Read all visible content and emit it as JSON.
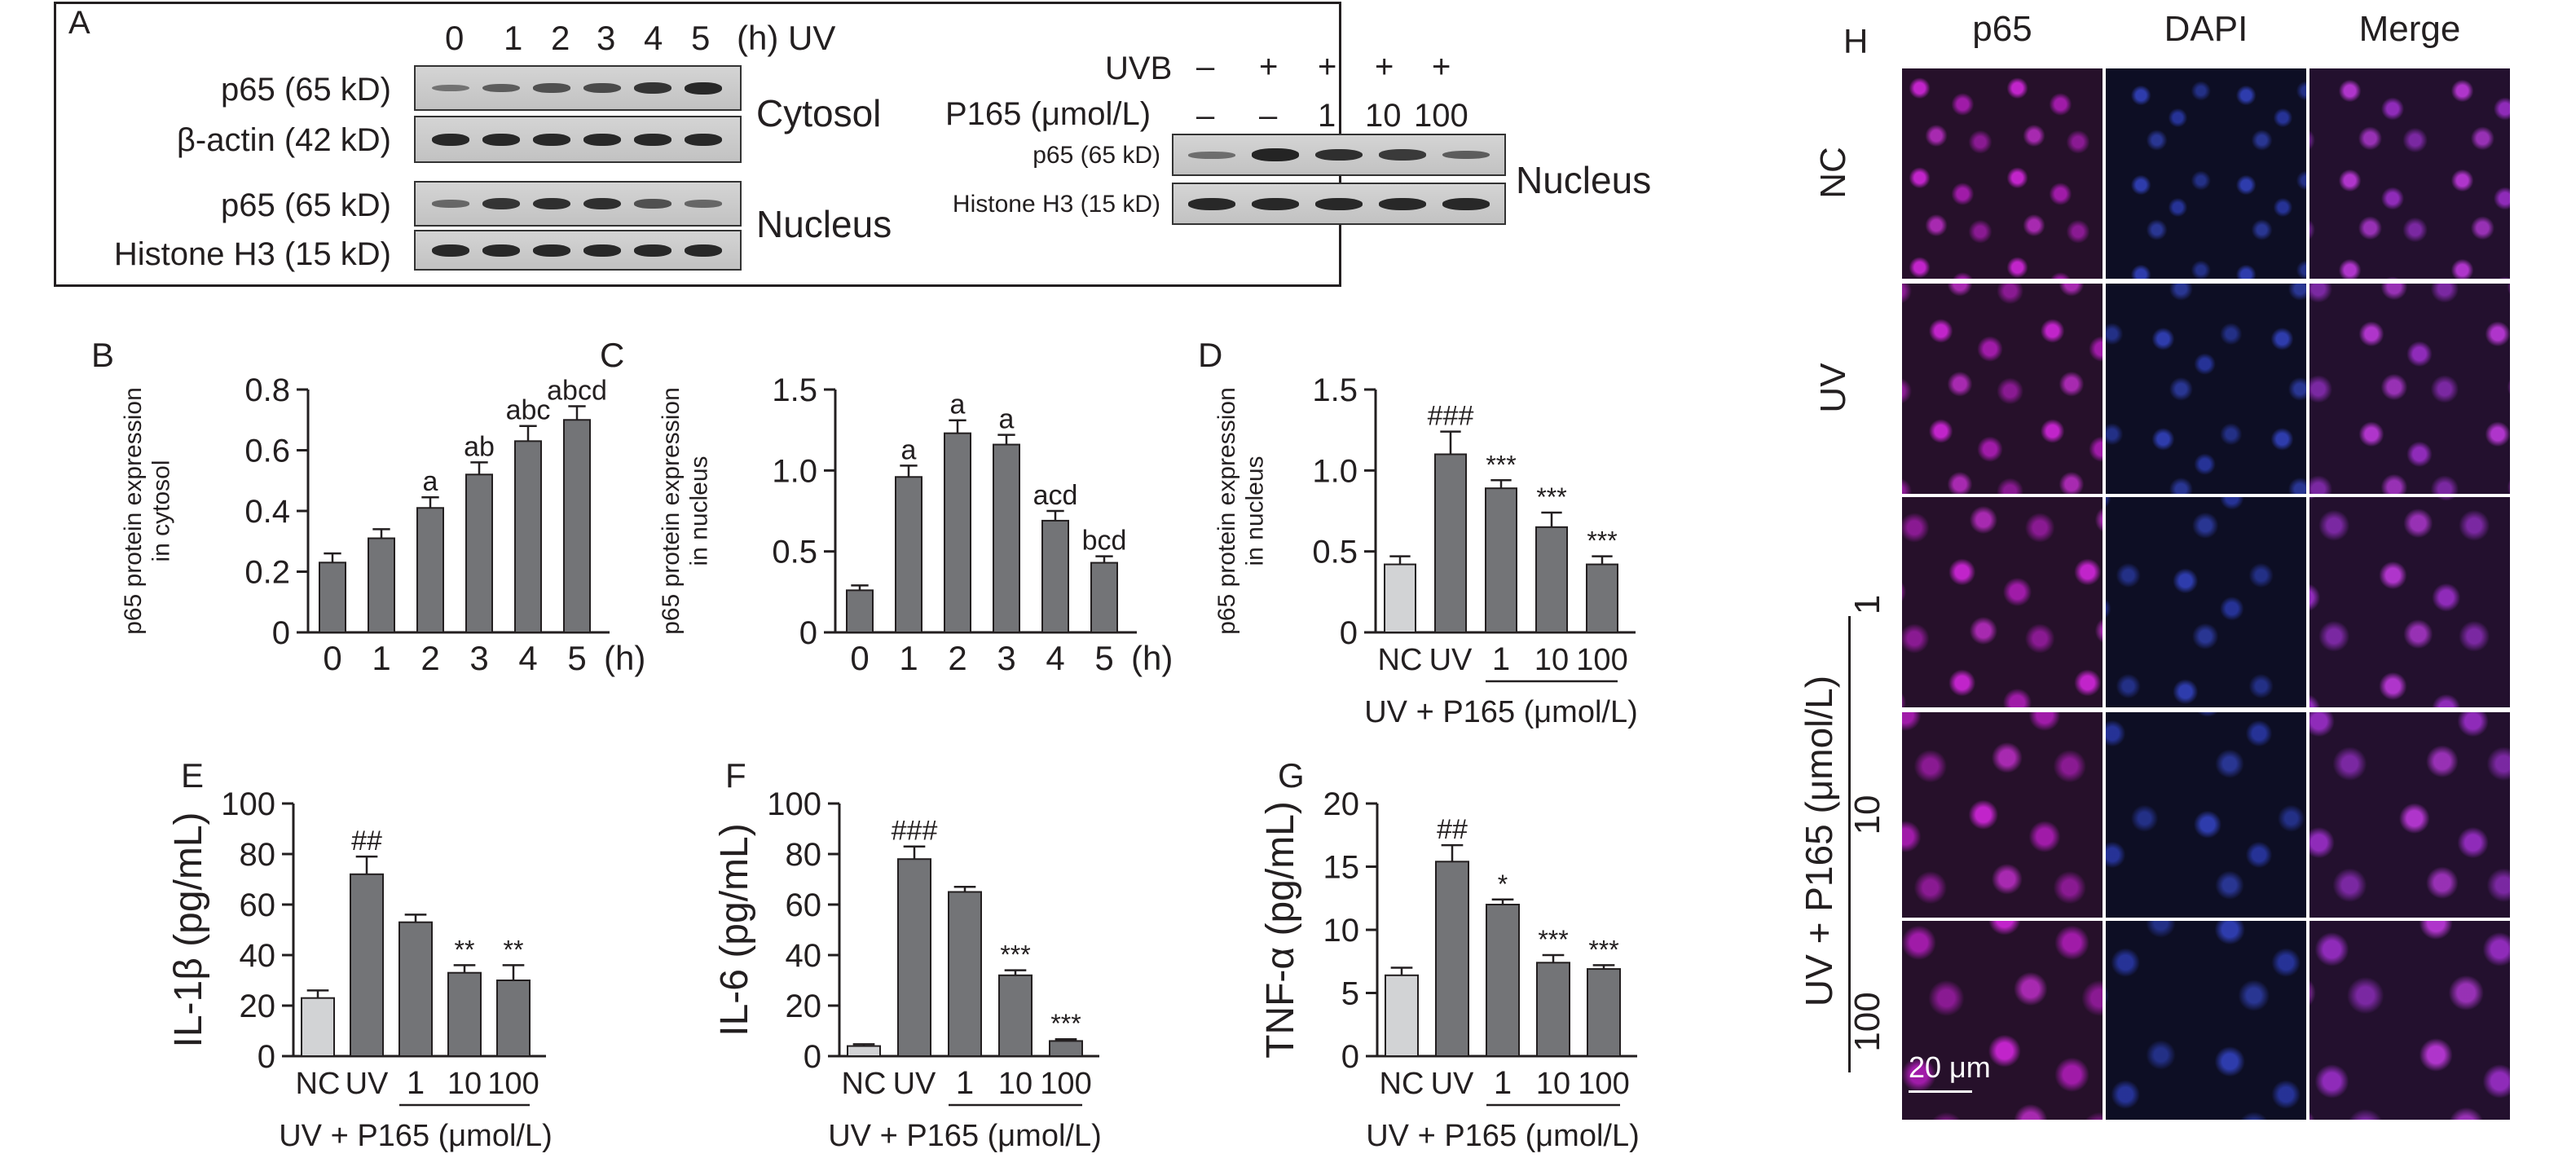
{
  "panel_a": {
    "letter": "A",
    "time_header": {
      "values": [
        "0",
        "1",
        "2",
        "3",
        "4",
        "5"
      ],
      "unit": "(h) UV"
    },
    "left_blots": [
      {
        "label": "p65 (65 kD)",
        "band_intensities": [
          0.25,
          0.45,
          0.55,
          0.6,
          0.8,
          0.9
        ]
      },
      {
        "label": "β-actin (42 kD)",
        "band_intensities": [
          0.9,
          0.9,
          0.9,
          0.9,
          0.9,
          0.9
        ]
      },
      {
        "label": "p65 (65 kD)",
        "band_intensities": [
          0.35,
          0.8,
          0.85,
          0.85,
          0.55,
          0.35
        ]
      },
      {
        "label": "Histone H3 (15 kD)",
        "band_intensities": [
          0.9,
          0.9,
          0.9,
          0.9,
          0.9,
          0.9
        ]
      }
    ],
    "compartments": [
      "Cytosol",
      "Nucleus"
    ],
    "right_header": {
      "uvb_label": "UVB",
      "uvb_values": [
        "–",
        "+",
        "+",
        "+",
        "+"
      ],
      "p165_label": "P165 (μmol/L)",
      "p165_values": [
        "–",
        "–",
        "1",
        "10",
        "100"
      ]
    },
    "right_blots": [
      {
        "label": "p65 (65 kD)",
        "band_intensities": [
          0.3,
          0.95,
          0.85,
          0.75,
          0.45
        ]
      },
      {
        "label": "Histone H3 (15 kD)",
        "band_intensities": [
          0.9,
          0.9,
          0.9,
          0.9,
          0.9
        ]
      }
    ],
    "right_compartment": "Nucleus"
  },
  "chart_data": [
    {
      "panel": "B",
      "type": "bar",
      "ylabel_lines": [
        "p65 protein expression",
        "in cytosol"
      ],
      "categories": [
        "0",
        "1",
        "2",
        "3",
        "4",
        "5"
      ],
      "x_unit": "(h)",
      "values": [
        0.23,
        0.31,
        0.41,
        0.52,
        0.63,
        0.7
      ],
      "errors": [
        0.03,
        0.03,
        0.035,
        0.04,
        0.05,
        0.045
      ],
      "sig": [
        "",
        "",
        "a",
        "ab",
        "abc",
        "abcd"
      ],
      "ylim": [
        0,
        0.8
      ],
      "yticks": [
        "0",
        "0.2",
        "0.4",
        "0.6",
        "0.8"
      ],
      "bar_colors": [
        "#737477",
        "#737477",
        "#737477",
        "#737477",
        "#737477",
        "#737477"
      ]
    },
    {
      "panel": "C",
      "type": "bar",
      "ylabel_lines": [
        "p65 protein expression",
        "in nucleus"
      ],
      "categories": [
        "0",
        "1",
        "2",
        "3",
        "4",
        "5"
      ],
      "x_unit": "(h)",
      "values": [
        0.26,
        0.96,
        1.23,
        1.16,
        0.69,
        0.43
      ],
      "errors": [
        0.03,
        0.07,
        0.08,
        0.06,
        0.06,
        0.04
      ],
      "sig": [
        "",
        "a",
        "a",
        "a",
        "acd",
        "bcd"
      ],
      "ylim": [
        0,
        1.5
      ],
      "yticks": [
        "0",
        "0.5",
        "1.0",
        "1.5"
      ],
      "bar_colors": [
        "#737477",
        "#737477",
        "#737477",
        "#737477",
        "#737477",
        "#737477"
      ]
    },
    {
      "panel": "D",
      "type": "bar",
      "ylabel_lines": [
        "p65 protein expression",
        "in nucleus"
      ],
      "categories": [
        "NC",
        "UV",
        "1",
        "10",
        "100"
      ],
      "group_label": "UV + P165 (μmol/L)",
      "values": [
        0.42,
        1.1,
        0.89,
        0.65,
        0.42
      ],
      "errors": [
        0.05,
        0.14,
        0.05,
        0.09,
        0.05
      ],
      "sig": [
        "",
        "###",
        "***",
        "***",
        "***"
      ],
      "ylim": [
        0,
        1.5
      ],
      "yticks": [
        "0",
        "0.5",
        "1.0",
        "1.5"
      ],
      "bar_colors": [
        "#d2d3d5",
        "#737477",
        "#737477",
        "#737477",
        "#737477"
      ]
    },
    {
      "panel": "E",
      "type": "bar",
      "ylabel_lines": [
        "IL-1β (pg/mL)"
      ],
      "categories": [
        "NC",
        "UV",
        "1",
        "10",
        "100"
      ],
      "group_label": "UV + P165 (μmol/L)",
      "values": [
        23,
        72,
        53,
        33,
        30
      ],
      "errors": [
        3,
        7,
        3,
        3,
        6
      ],
      "sig": [
        "",
        "##",
        "",
        "**",
        "**"
      ],
      "ylim": [
        0,
        100
      ],
      "yticks": [
        "0",
        "20",
        "40",
        "60",
        "80",
        "100"
      ],
      "bar_colors": [
        "#d2d3d5",
        "#737477",
        "#737477",
        "#737477",
        "#737477"
      ]
    },
    {
      "panel": "F",
      "type": "bar",
      "ylabel_lines": [
        "IL-6 (pg/mL)"
      ],
      "categories": [
        "NC",
        "UV",
        "1",
        "10",
        "100"
      ],
      "group_label": "UV + P165 (μmol/L)",
      "values": [
        4,
        78,
        65,
        32,
        6
      ],
      "errors": [
        0.7,
        5,
        2,
        2,
        0.7
      ],
      "sig": [
        "",
        "###",
        "",
        "***",
        "***"
      ],
      "ylim": [
        0,
        100
      ],
      "yticks": [
        "0",
        "20",
        "40",
        "60",
        "80",
        "100"
      ],
      "bar_colors": [
        "#d2d3d5",
        "#737477",
        "#737477",
        "#737477",
        "#737477"
      ]
    },
    {
      "panel": "G",
      "type": "bar",
      "ylabel_lines": [
        "TNF-α (pg/mL)"
      ],
      "categories": [
        "NC",
        "UV",
        "1",
        "10",
        "100"
      ],
      "group_label": "UV + P165 (μmol/L)",
      "values": [
        6.4,
        15.4,
        12,
        7.4,
        6.9
      ],
      "errors": [
        0.6,
        1.3,
        0.4,
        0.6,
        0.3
      ],
      "sig": [
        "",
        "##",
        "*",
        "***",
        "***"
      ],
      "ylim": [
        0,
        20
      ],
      "yticks": [
        "0",
        "5",
        "10",
        "15",
        "20"
      ],
      "bar_colors": [
        "#d2d3d5",
        "#737477",
        "#737477",
        "#737477",
        "#737477"
      ]
    }
  ],
  "panel_h": {
    "letter": "H",
    "columns": [
      "p65",
      "DAPI",
      "Merge"
    ],
    "rows": [
      "NC",
      "UV",
      "1",
      "10",
      "100"
    ],
    "group_label": "UV + P165 (μmol/L)",
    "scale_bar": "20 μm"
  }
}
